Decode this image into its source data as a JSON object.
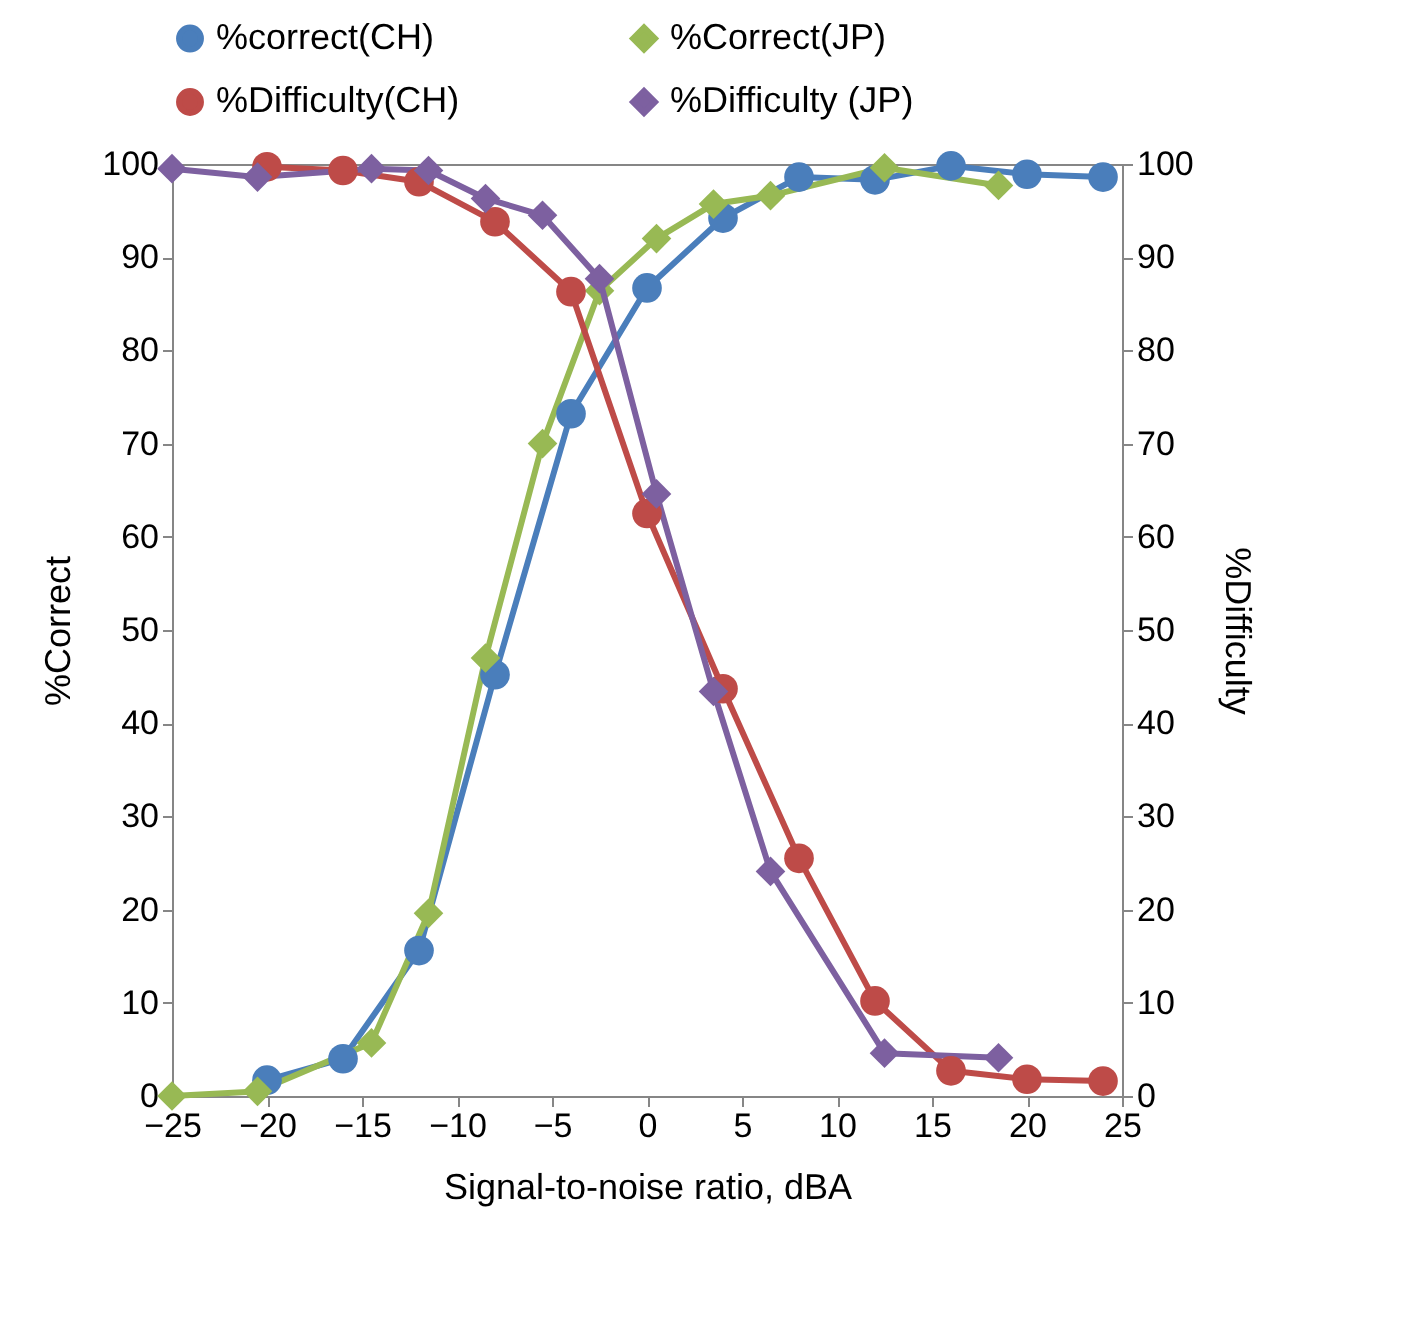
{
  "chart_data": {
    "type": "line",
    "xlabel": "Signal-to-noise ratio, dBA",
    "ylabel": "%Correct",
    "y2label": "%Difficulty",
    "xlim": [
      -25,
      25
    ],
    "xticks": [
      -25,
      -20,
      -15,
      -10,
      -5,
      0,
      5,
      10,
      15,
      20,
      25
    ],
    "ylim": [
      0,
      100
    ],
    "yticks": [
      0,
      10,
      20,
      30,
      40,
      50,
      60,
      70,
      80,
      90,
      100
    ],
    "y2lim": [
      0,
      100
    ],
    "y2ticks": [
      0,
      10,
      20,
      30,
      40,
      50,
      60,
      70,
      80,
      90,
      100
    ],
    "grid": false,
    "legend": "top",
    "line_style": "solid",
    "series": [
      {
        "name": "%correct(CH)",
        "color": "#4a7ebb",
        "marker": "circle",
        "x": [
          -20,
          -16,
          -12,
          -8,
          -4,
          0,
          4,
          8,
          12,
          16,
          20,
          24
        ],
        "values": [
          1.7,
          4,
          15.6,
          45.2,
          73.2,
          86.7,
          94.2,
          98.6,
          98.3,
          99.8,
          98.9,
          98.6
        ]
      },
      {
        "name": "%Correct(JP)",
        "color": "#98b954",
        "marker": "diamond",
        "x": [
          -25,
          -20.5,
          -14.5,
          -11.5,
          -8.5,
          -5.5,
          -2.5,
          0.5,
          3.5,
          6.5,
          12.5,
          18.5
        ],
        "values": [
          0,
          0.5,
          5.7,
          19.6,
          47,
          70,
          86.4,
          92,
          95.7,
          96.6,
          99.6,
          97.7
        ]
      },
      {
        "name": "%Difficulty(CH)",
        "color": "#be4b48",
        "marker": "circle",
        "axis": "y2",
        "x": [
          -20,
          -16,
          -12,
          -8,
          -4,
          0,
          4,
          8,
          12,
          16,
          20,
          24
        ],
        "values": [
          99.7,
          99.3,
          98.1,
          93.8,
          86.3,
          62.5,
          43.7,
          25.5,
          10.2,
          2.7,
          1.8,
          1.6
        ]
      },
      {
        "name": "%Difficulty (JP)",
        "color": "#7d60a0",
        "marker": "diamond",
        "axis": "y2",
        "x": [
          -25,
          -20.5,
          -14.5,
          -11.5,
          -8.5,
          -5.5,
          -2.5,
          0.5,
          3.5,
          6.5,
          12.5,
          18.5
        ],
        "values": [
          99.5,
          98.6,
          99.5,
          99.3,
          96.3,
          94.5,
          87.7,
          64.6,
          43.4,
          24.1,
          4.6,
          4.1
        ]
      }
    ]
  }
}
